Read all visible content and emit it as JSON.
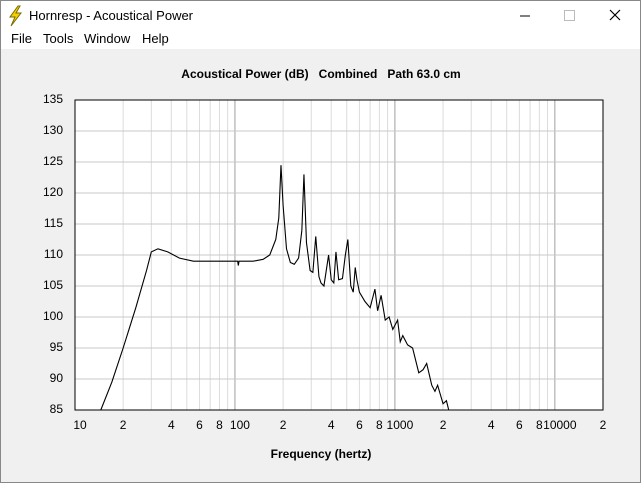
{
  "window": {
    "title": "Hornresp - Acoustical Power",
    "menu": [
      "File",
      "Tools",
      "Window",
      "Help"
    ]
  },
  "chart_data": {
    "type": "line",
    "title": "Acoustical Power (dB)   Combined   Path 63.0 cm",
    "x_label": "Frequency (hertz)",
    "xscale": "log",
    "grid": true,
    "color": "#000000",
    "xlim": [
      10,
      20000
    ],
    "ylim": [
      85,
      135
    ],
    "xticks": [
      10,
      {
        "value": 20,
        "label": "2"
      },
      {
        "value": 40,
        "label": "4"
      },
      {
        "value": 60,
        "label": "6"
      },
      {
        "value": 80,
        "label": "8"
      },
      100,
      {
        "value": 200,
        "label": "2"
      },
      {
        "value": 400,
        "label": "4"
      },
      {
        "value": 600,
        "label": "6"
      },
      {
        "value": 800,
        "label": "8"
      },
      1000,
      {
        "value": 2000,
        "label": "2"
      },
      {
        "value": 4000,
        "label": "4"
      },
      {
        "value": 6000,
        "label": "6"
      },
      {
        "value": 8000,
        "label": "8"
      },
      10000,
      {
        "value": 20000,
        "label": "2"
      }
    ],
    "xticks_minor": [
      30,
      50,
      70,
      90,
      300,
      500,
      700,
      900,
      3000,
      5000,
      7000,
      9000
    ],
    "yticks": [
      85,
      90,
      95,
      100,
      105,
      110,
      115,
      120,
      125,
      130,
      135
    ],
    "x": [
      14.5,
      17,
      20,
      24,
      28,
      30,
      33,
      38,
      45,
      55,
      70,
      90,
      100,
      104,
      105,
      106,
      110,
      130,
      150,
      165,
      180,
      188,
      194,
      200,
      210,
      222,
      235,
      250,
      262,
      270,
      280,
      295,
      307,
      320,
      335,
      345,
      360,
      385,
      400,
      415,
      428,
      445,
      470,
      490,
      508,
      530,
      549,
      565,
      579,
      600,
      650,
      700,
      750,
      780,
      820,
      870,
      920,
      970,
      1040,
      1080,
      1120,
      1200,
      1290,
      1410,
      1500,
      1580,
      1700,
      1780,
      1850,
      2000,
      2100,
      2170
    ],
    "values": [
      85,
      89.5,
      95,
      101.5,
      107.5,
      110.5,
      111,
      110.5,
      109.5,
      109,
      109,
      109,
      109,
      109,
      108.3,
      109,
      109,
      109,
      109.3,
      110,
      112.5,
      116,
      124.5,
      118,
      111,
      108.8,
      108.5,
      109.5,
      114,
      123,
      112,
      107.5,
      107.2,
      113,
      106.5,
      105.5,
      105,
      110,
      106,
      105.5,
      110.5,
      106,
      106.2,
      110,
      112.5,
      105,
      104,
      108,
      106,
      104,
      102.5,
      101.5,
      104.5,
      101,
      103.5,
      99.5,
      100,
      98,
      99.5,
      96,
      97,
      95.5,
      95,
      91,
      91.5,
      92.5,
      89,
      88,
      89,
      86,
      86.5,
      85
    ]
  }
}
